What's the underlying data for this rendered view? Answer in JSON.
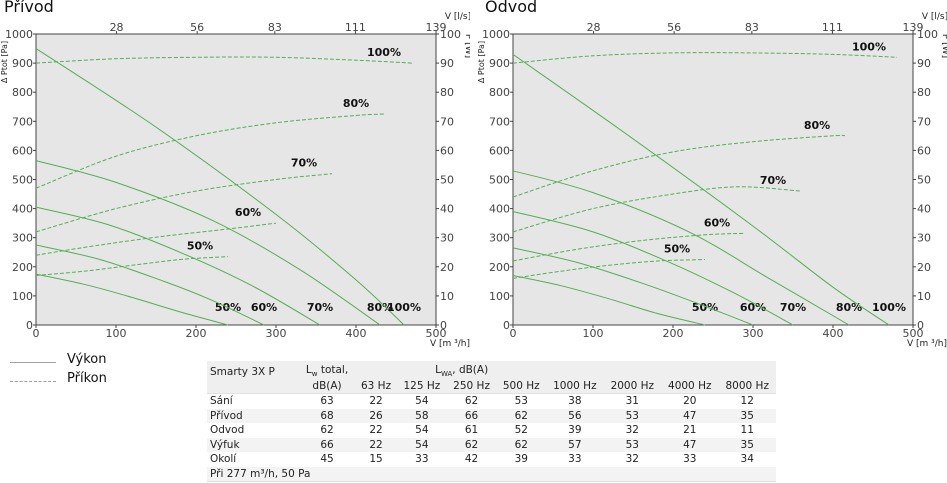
{
  "panels": [
    {
      "title": "Přívod",
      "left_axis_label": "Δ Ptot [Pa]",
      "right_axis_label": "P [W]",
      "top_axis_label": "V [l/s]",
      "bottom_axis_label": "V [m ³/h]"
    },
    {
      "title": "Odvod",
      "left_axis_label": "Δ Ptot [Pa]",
      "right_axis_label": "P [W]",
      "top_axis_label": "V [l/s]",
      "bottom_axis_label": "V [m ³/h]"
    }
  ],
  "legend": {
    "solid": "Výkon",
    "dashed": "Příkon"
  },
  "colors": {
    "plot_bg": "#e6e6e6",
    "curve": "#52b052",
    "axis": "#444444"
  },
  "chart_data": [
    {
      "type": "line",
      "title": "Přívod",
      "xlabel": "V [m ³/h]",
      "ylabel": "Δ Ptot [Pa]",
      "y2label": "P [W]",
      "x2label": "V [l/s]",
      "xlim": [
        0,
        500
      ],
      "ylim": [
        0,
        1000
      ],
      "y2lim": [
        0,
        100
      ],
      "x2lim": [
        0,
        139
      ],
      "x_ticks": [
        0,
        100,
        200,
        300,
        400,
        500
      ],
      "y_ticks": [
        0,
        100,
        200,
        300,
        400,
        500,
        600,
        700,
        800,
        900,
        1000
      ],
      "y2_ticks": [
        0,
        10,
        20,
        30,
        40,
        50,
        60,
        70,
        80,
        90,
        100
      ],
      "x2_ticks": [
        28,
        56,
        83,
        111,
        139
      ],
      "grid": false,
      "pressure_series": [
        {
          "label": "50%",
          "x": [
            0,
            60,
            120,
            180,
            240
          ],
          "y": [
            175,
            140,
            95,
            45,
            0
          ]
        },
        {
          "label": "60%",
          "x": [
            0,
            80,
            160,
            220,
            285
          ],
          "y": [
            275,
            225,
            150,
            85,
            0
          ]
        },
        {
          "label": "70%",
          "x": [
            0,
            90,
            180,
            270,
            355
          ],
          "y": [
            405,
            345,
            250,
            135,
            0
          ]
        },
        {
          "label": "80%",
          "x": [
            0,
            100,
            220,
            330,
            430
          ],
          "y": [
            565,
            490,
            360,
            190,
            0
          ]
        },
        {
          "label": "100%",
          "x": [
            0,
            150,
            300,
            400,
            460
          ],
          "y": [
            950,
            680,
            380,
            155,
            0
          ]
        }
      ],
      "power_series": [
        {
          "label": "50%",
          "x": [
            0,
            60,
            120,
            180,
            240
          ],
          "y": [
            17,
            18.5,
            20.5,
            22.5,
            23.5
          ]
        },
        {
          "label": "60%",
          "x": [
            0,
            80,
            160,
            240,
            300
          ],
          "y": [
            24,
            27.5,
            30.5,
            33,
            35
          ]
        },
        {
          "label": "70%",
          "x": [
            0,
            100,
            200,
            300,
            370
          ],
          "y": [
            32,
            40,
            46,
            50,
            52
          ]
        },
        {
          "label": "80%",
          "x": [
            0,
            100,
            200,
            300,
            400,
            435
          ],
          "y": [
            47,
            58,
            65,
            69.5,
            72,
            72.5
          ]
        },
        {
          "label": "100%",
          "x": [
            0,
            100,
            200,
            300,
            400,
            470
          ],
          "y": [
            90,
            91.5,
            92,
            92,
            91,
            90
          ]
        }
      ]
    },
    {
      "type": "line",
      "title": "Odvod",
      "xlabel": "V [m ³/h]",
      "ylabel": "Δ Ptot [Pa]",
      "y2label": "P [W]",
      "x2label": "V [l/s]",
      "xlim": [
        0,
        500
      ],
      "ylim": [
        0,
        1000
      ],
      "y2lim": [
        0,
        100
      ],
      "x2lim": [
        0,
        139
      ],
      "x_ticks": [
        0,
        100,
        200,
        300,
        400,
        500
      ],
      "y_ticks": [
        0,
        100,
        200,
        300,
        400,
        500,
        600,
        700,
        800,
        900,
        1000
      ],
      "y2_ticks": [
        0,
        10,
        20,
        30,
        40,
        50,
        60,
        70,
        80,
        90,
        100
      ],
      "x2_ticks": [
        28,
        56,
        83,
        111,
        139
      ],
      "grid": false,
      "pressure_series": [
        {
          "label": "50%",
          "x": [
            0,
            60,
            120,
            180,
            240
          ],
          "y": [
            170,
            135,
            90,
            40,
            0
          ]
        },
        {
          "label": "60%",
          "x": [
            0,
            80,
            160,
            230,
            300
          ],
          "y": [
            265,
            215,
            145,
            75,
            0
          ]
        },
        {
          "label": "70%",
          "x": [
            0,
            100,
            200,
            280,
            350
          ],
          "y": [
            390,
            320,
            210,
            105,
            0
          ]
        },
        {
          "label": "80%",
          "x": [
            0,
            100,
            220,
            320,
            420
          ],
          "y": [
            530,
            455,
            320,
            160,
            0
          ]
        },
        {
          "label": "100%",
          "x": [
            0,
            150,
            300,
            400,
            470
          ],
          "y": [
            930,
            640,
            340,
            130,
            0
          ]
        }
      ],
      "power_series": [
        {
          "label": "50%",
          "x": [
            0,
            60,
            120,
            180,
            240
          ],
          "y": [
            16,
            18.5,
            20.5,
            22,
            22.5
          ]
        },
        {
          "label": "60%",
          "x": [
            0,
            80,
            160,
            240,
            290
          ],
          "y": [
            22,
            26,
            29,
            31,
            31.5
          ]
        },
        {
          "label": "70%",
          "x": [
            0,
            100,
            200,
            280,
            360
          ],
          "y": [
            32,
            40,
            45,
            47.5,
            46
          ]
        },
        {
          "label": "80%",
          "x": [
            0,
            100,
            200,
            300,
            400,
            415
          ],
          "y": [
            44,
            53,
            59.5,
            63,
            65,
            65
          ]
        },
        {
          "label": "100%",
          "x": [
            0,
            100,
            200,
            300,
            400,
            480
          ],
          "y": [
            90,
            92.5,
            93.5,
            93.5,
            93,
            92
          ]
        }
      ]
    }
  ],
  "table": {
    "model": "Smarty 3X P",
    "lw_total_1": "L",
    "lw_total_sub": "w",
    "lw_total_2": " total,",
    "lwa_1": "L",
    "lwa_sub": "WA",
    "lwa_2": ", dB(A)",
    "unit": "dB(A)",
    "freqs": [
      "63 Hz",
      "125 Hz",
      "250 Hz",
      "500 Hz",
      "1000 Hz",
      "2000 Hz",
      "4000 Hz",
      "8000 Hz"
    ],
    "rows": [
      {
        "label": "Sání",
        "values": [
          "63",
          "22",
          "54",
          "62",
          "53",
          "38",
          "31",
          "20",
          "12"
        ]
      },
      {
        "label": "Přívod",
        "values": [
          "68",
          "26",
          "58",
          "66",
          "62",
          "56",
          "53",
          "47",
          "35"
        ]
      },
      {
        "label": "Odvod",
        "values": [
          "62",
          "22",
          "54",
          "61",
          "52",
          "39",
          "32",
          "21",
          "11"
        ]
      },
      {
        "label": "Výfuk",
        "values": [
          "66",
          "22",
          "54",
          "62",
          "62",
          "57",
          "53",
          "47",
          "35"
        ]
      },
      {
        "label": "Okolí",
        "values": [
          "45",
          "15",
          "33",
          "42",
          "39",
          "33",
          "32",
          "33",
          "34"
        ]
      }
    ],
    "note": "Při 277 m³/h, 50 Pa"
  }
}
